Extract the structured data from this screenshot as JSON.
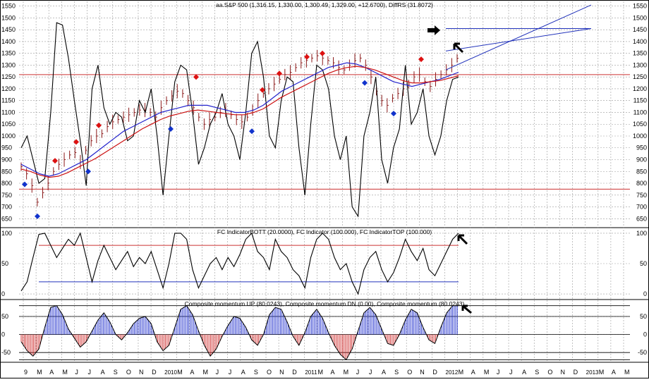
{
  "panel_titles": {
    "price": "aa.S&P 500 (1,316.15, 1,330.00, 1,300.49, 1,329.00, +12.6700), DiffRS (31.8072)",
    "indicator": "FC IndicatorBOTT (20.0000), FC Indicator (100.000), FC IndicatorTOP (100.000)",
    "momentum": "Composite momentum UP (80.0243), Composite momentum DN (0.00), Composite momentum (80.0243)"
  },
  "month_labels": [
    "9",
    "M",
    "A",
    "M",
    "J",
    "J",
    "A",
    "S",
    "O",
    "N",
    "D",
    "2010",
    "M",
    "A",
    "M",
    "J",
    "J",
    "A",
    "S",
    "O",
    "N",
    "D",
    "2011",
    "M",
    "A",
    "M",
    "J",
    "J",
    "A",
    "S",
    "O",
    "N",
    "D",
    "2012",
    "M",
    "A",
    "M",
    "J",
    "J",
    "A",
    "S",
    "O",
    "N",
    "D",
    "2013",
    "M",
    "A",
    "M"
  ],
  "colors": {
    "price_bars": "#8b1a1a",
    "ma_blue": "#2222cc",
    "ma_red": "#cc1111",
    "oscillator": "#000000",
    "hline_red": "#cc3333",
    "hline_blue": "#2233bb",
    "up_marker": "#dd1111",
    "down_marker": "#1133cc",
    "momentum_up": "#1a2acc",
    "momentum_dn": "#cc2222",
    "grid": "#9a9a9a"
  },
  "chart_data": [
    {
      "type": "line",
      "panel": "price",
      "title": "aa.S&P 500 (1,316.15, 1,330.00, 1,300.49, 1,329.00, +12.6700), DiffRS (31.8072)",
      "yticks": [
        650,
        700,
        750,
        800,
        850,
        900,
        950,
        1000,
        1050,
        1100,
        1150,
        1200,
        1250,
        1300,
        1350,
        1400,
        1450,
        1500,
        1550
      ],
      "ylim": [
        615,
        1570
      ],
      "price_weekly_close": [
        870,
        840,
        790,
        720,
        760,
        800,
        850,
        880,
        900,
        920,
        930,
        890,
        940,
        980,
        1000,
        1010,
        1040,
        1060,
        1070,
        1080,
        1090,
        1100,
        1110,
        1110,
        1100,
        1080,
        1120,
        1150,
        1170,
        1190,
        1180,
        1150,
        1120,
        1080,
        1050,
        1070,
        1080,
        1100,
        1110,
        1090,
        1070,
        1060,
        1080,
        1110,
        1150,
        1180,
        1200,
        1220,
        1240,
        1260,
        1270,
        1290,
        1310,
        1320,
        1330,
        1340,
        1330,
        1320,
        1310,
        1290,
        1280,
        1300,
        1320,
        1330,
        1300,
        1250,
        1190,
        1150,
        1130,
        1160,
        1180,
        1200,
        1220,
        1250,
        1260,
        1230,
        1210,
        1240,
        1260,
        1280,
        1300,
        1329
      ],
      "series": [
        {
          "name": "",
          "role": "oscillator",
          "values": [
            950,
            1000,
            900,
            800,
            820,
            1100,
            1480,
            1470,
            1330,
            1150,
            980,
            790,
            1200,
            1300,
            1120,
            1050,
            1100,
            1080,
            980,
            1000,
            1150,
            1100,
            1200,
            1000,
            750,
            1000,
            1230,
            1300,
            1280,
            1100,
            880,
            950,
            1050,
            1100,
            1180,
            1050,
            1000,
            900,
            1100,
            1350,
            1400,
            1250,
            1000,
            950,
            1150,
            1250,
            1230,
            950,
            750,
            1050,
            1300,
            1280,
            1200,
            1000,
            900,
            1000,
            700,
            660,
            1000,
            1100,
            1250,
            900,
            800,
            950,
            1030,
            1300,
            1050,
            1100,
            1200,
            1000,
            920,
            1000,
            1150,
            1240,
            1250
          ]
        },
        {
          "name": "",
          "role": "ma_blue",
          "values": [
            880,
            860,
            840,
            830,
            840,
            860,
            880,
            900,
            930,
            960,
            990,
            1020,
            1040,
            1060,
            1080,
            1100,
            1110,
            1120,
            1130,
            1130,
            1130,
            1120,
            1110,
            1100,
            1100,
            1110,
            1130,
            1160,
            1190,
            1210,
            1230,
            1250,
            1270,
            1290,
            1300,
            1310,
            1305,
            1290,
            1270,
            1250,
            1230,
            1220,
            1210,
            1220,
            1230,
            1240,
            1255,
            1270
          ]
        },
        {
          "name": "",
          "role": "ma_red",
          "values": [
            860,
            850,
            835,
            825,
            830,
            845,
            865,
            885,
            905,
            930,
            955,
            980,
            1005,
            1030,
            1050,
            1070,
            1085,
            1095,
            1105,
            1110,
            1105,
            1100,
            1095,
            1090,
            1090,
            1100,
            1115,
            1140,
            1165,
            1185,
            1205,
            1225,
            1245,
            1265,
            1280,
            1290,
            1295,
            1290,
            1280,
            1265,
            1250,
            1235,
            1225,
            1225,
            1230,
            1235,
            1245,
            1255
          ]
        }
      ],
      "hlines": [
        1260,
        775
      ],
      "markers_up": [
        895,
        975,
        1045,
        1250,
        1195,
        1265,
        1335,
        1350,
        1325
      ],
      "markers_down": [
        795,
        660,
        850,
        1030,
        1020,
        1225,
        1095
      ],
      "projection_lines": [
        {
          "from": [
            1250,
            1290
          ],
          "to": [
            1380,
            1555
          ]
        },
        {
          "from": [
            1290,
            1290
          ],
          "to": [
            1340,
            1455
          ]
        },
        {
          "from": [
            1455,
            1455
          ],
          "to": [
            1455,
            1455
          ]
        }
      ]
    },
    {
      "type": "line",
      "panel": "indicator",
      "title": "FC IndicatorBOTT (20.0000), FC Indicator (100.000), FC IndicatorTOP (100.000)",
      "yticks": [
        0,
        50,
        100
      ],
      "ylim": [
        -8,
        108
      ],
      "hlines": [
        80,
        20
      ],
      "values": [
        5,
        20,
        60,
        98,
        100,
        80,
        60,
        75,
        90,
        80,
        100,
        60,
        20,
        55,
        80,
        60,
        40,
        55,
        70,
        45,
        60,
        50,
        70,
        40,
        10,
        50,
        100,
        100,
        90,
        40,
        10,
        30,
        50,
        60,
        40,
        60,
        45,
        65,
        90,
        100,
        70,
        60,
        40,
        90,
        70,
        60,
        40,
        30,
        10,
        60,
        90,
        100,
        90,
        60,
        40,
        50,
        20,
        0,
        40,
        60,
        70,
        40,
        20,
        35,
        60,
        90,
        70,
        55,
        75,
        40,
        30,
        50,
        70,
        90,
        100
      ]
    },
    {
      "type": "area",
      "panel": "momentum",
      "title": "Composite momentum UP (80.0243), Composite momentum DN (0.00), Composite momentum (80.0243)",
      "yticks": [
        -50,
        0,
        50
      ],
      "ylim": [
        -75,
        95
      ],
      "hlines": [
        80,
        50,
        -50,
        -70
      ],
      "values": [
        -20,
        -45,
        -60,
        -40,
        20,
        75,
        80,
        55,
        15,
        -10,
        -35,
        -20,
        10,
        40,
        60,
        35,
        0,
        -15,
        5,
        30,
        45,
        50,
        30,
        -20,
        -45,
        -30,
        20,
        70,
        80,
        55,
        10,
        -30,
        -60,
        -40,
        -5,
        25,
        50,
        45,
        20,
        -15,
        -30,
        0,
        55,
        75,
        70,
        35,
        -5,
        -30,
        5,
        50,
        70,
        45,
        5,
        -30,
        -55,
        -70,
        -40,
        10,
        60,
        75,
        55,
        15,
        -25,
        -30,
        0,
        40,
        70,
        60,
        20,
        -15,
        -25,
        20,
        60,
        80,
        80
      ]
    }
  ]
}
